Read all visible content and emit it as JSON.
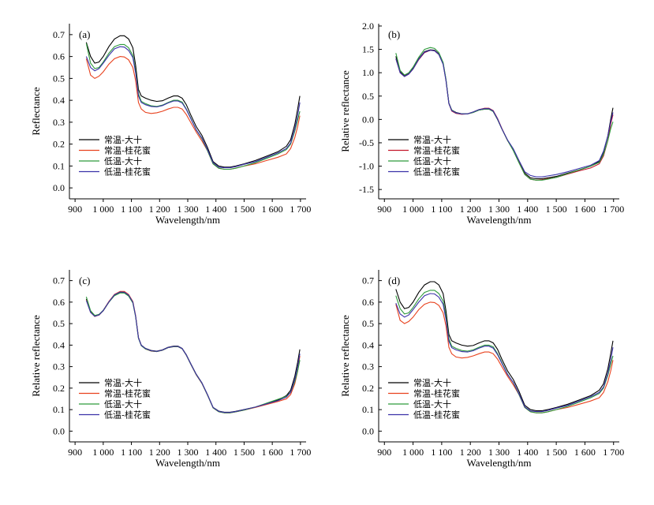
{
  "chart_data": [
    {
      "type": "line",
      "panel_label": "(a)",
      "xlabel": "Wavelength/nm",
      "ylabel": "Reflectance",
      "xlim": [
        880,
        1720
      ],
      "ylim": [
        -0.05,
        0.75
      ],
      "x_tick_labels": [
        "900",
        "1 000",
        "1 100",
        "1 200",
        "1 300",
        "1 400",
        "1 500",
        "1 600",
        "1 700"
      ],
      "x_ticks": [
        900,
        1000,
        1100,
        1200,
        1300,
        1400,
        1500,
        1600,
        1700
      ],
      "y_tick_labels": [
        "0.0",
        "0.1",
        "0.2",
        "0.3",
        "0.4",
        "0.5",
        "0.6",
        "0.7"
      ],
      "y_ticks": [
        0,
        0.1,
        0.2,
        0.3,
        0.4,
        0.5,
        0.6,
        0.7
      ],
      "legend": "bottom-left",
      "x": [
        940,
        955,
        970,
        985,
        1000,
        1020,
        1040,
        1060,
        1075,
        1090,
        1105,
        1115,
        1125,
        1135,
        1150,
        1170,
        1190,
        1210,
        1230,
        1250,
        1265,
        1280,
        1295,
        1310,
        1330,
        1350,
        1370,
        1390,
        1410,
        1430,
        1450,
        1470,
        1500,
        1540,
        1580,
        1620,
        1650,
        1665,
        1680,
        1690,
        1698
      ],
      "series": [
        {
          "name": "常温-大十",
          "color": "#000000",
          "values": [
            0.665,
            0.6,
            0.57,
            0.575,
            0.6,
            0.645,
            0.68,
            0.695,
            0.695,
            0.68,
            0.64,
            0.56,
            0.45,
            0.42,
            0.41,
            0.4,
            0.395,
            0.398,
            0.41,
            0.42,
            0.42,
            0.41,
            0.38,
            0.335,
            0.28,
            0.24,
            0.185,
            0.12,
            0.1,
            0.095,
            0.095,
            0.1,
            0.11,
            0.125,
            0.145,
            0.165,
            0.19,
            0.22,
            0.29,
            0.36,
            0.42
          ]
        },
        {
          "name": "常温-桂花蜜",
          "color": "#e8421e",
          "values": [
            0.59,
            0.515,
            0.5,
            0.51,
            0.53,
            0.565,
            0.59,
            0.6,
            0.598,
            0.585,
            0.55,
            0.49,
            0.39,
            0.36,
            0.345,
            0.34,
            0.343,
            0.35,
            0.36,
            0.368,
            0.368,
            0.36,
            0.335,
            0.3,
            0.255,
            0.215,
            0.17,
            0.11,
            0.09,
            0.085,
            0.085,
            0.09,
            0.1,
            0.11,
            0.125,
            0.14,
            0.155,
            0.18,
            0.23,
            0.28,
            0.33
          ]
        },
        {
          "name": "低温-大十",
          "color": "#2e9a3c",
          "values": [
            0.66,
            0.57,
            0.545,
            0.55,
            0.575,
            0.615,
            0.645,
            0.655,
            0.655,
            0.64,
            0.605,
            0.535,
            0.43,
            0.395,
            0.385,
            0.375,
            0.372,
            0.378,
            0.39,
            0.4,
            0.4,
            0.392,
            0.36,
            0.32,
            0.265,
            0.225,
            0.17,
            0.11,
            0.09,
            0.085,
            0.085,
            0.09,
            0.1,
            0.115,
            0.135,
            0.155,
            0.175,
            0.2,
            0.26,
            0.31,
            0.35
          ]
        },
        {
          "name": "低温-桂花蜜",
          "color": "#3a32a8",
          "values": [
            0.6,
            0.55,
            0.535,
            0.545,
            0.57,
            0.605,
            0.635,
            0.645,
            0.643,
            0.628,
            0.595,
            0.525,
            0.42,
            0.39,
            0.38,
            0.372,
            0.37,
            0.376,
            0.388,
            0.397,
            0.397,
            0.388,
            0.358,
            0.318,
            0.265,
            0.228,
            0.175,
            0.115,
            0.095,
            0.092,
            0.092,
            0.097,
            0.108,
            0.12,
            0.14,
            0.16,
            0.18,
            0.205,
            0.27,
            0.33,
            0.39
          ]
        }
      ]
    },
    {
      "type": "line",
      "panel_label": "(b)",
      "xlabel": "Wavelength/nm",
      "ylabel": "Relative reflectance",
      "xlim": [
        880,
        1720
      ],
      "ylim": [
        -1.7,
        2.05
      ],
      "x_tick_labels": [
        "900",
        "1 000",
        "1 100",
        "1 200",
        "1 300",
        "1 400",
        "1 500",
        "1 600",
        "1 700"
      ],
      "x_ticks": [
        900,
        1000,
        1100,
        1200,
        1300,
        1400,
        1500,
        1600,
        1700
      ],
      "y_tick_labels": [
        "-1.5",
        "-1.0",
        "-0.5",
        "0.0",
        "0.5",
        "1.0",
        "1.5",
        "2.0"
      ],
      "y_ticks": [
        -1.5,
        -1.0,
        -0.5,
        0.0,
        0.5,
        1.0,
        1.5,
        2.0
      ],
      "legend": "bottom-left",
      "x": [
        940,
        955,
        970,
        985,
        1000,
        1020,
        1040,
        1060,
        1075,
        1090,
        1105,
        1115,
        1125,
        1135,
        1150,
        1170,
        1190,
        1210,
        1230,
        1250,
        1265,
        1280,
        1295,
        1310,
        1330,
        1350,
        1370,
        1390,
        1410,
        1430,
        1450,
        1470,
        1500,
        1540,
        1580,
        1620,
        1650,
        1665,
        1680,
        1690,
        1698
      ],
      "series": [
        {
          "name": "常温-大十",
          "color": "#000000",
          "values": [
            1.35,
            1.02,
            0.93,
            0.98,
            1.1,
            1.3,
            1.45,
            1.49,
            1.48,
            1.4,
            1.2,
            0.85,
            0.35,
            0.2,
            0.15,
            0.12,
            0.12,
            0.15,
            0.2,
            0.22,
            0.22,
            0.17,
            0.0,
            -0.2,
            -0.45,
            -0.65,
            -0.9,
            -1.15,
            -1.25,
            -1.27,
            -1.27,
            -1.25,
            -1.22,
            -1.15,
            -1.08,
            -1.0,
            -0.9,
            -0.7,
            -0.35,
            0.0,
            0.25
          ]
        },
        {
          "name": "常温-桂花蜜",
          "color": "#c4152b",
          "values": [
            1.3,
            1.0,
            0.92,
            0.97,
            1.08,
            1.28,
            1.43,
            1.48,
            1.47,
            1.39,
            1.19,
            0.84,
            0.34,
            0.18,
            0.13,
            0.11,
            0.12,
            0.16,
            0.21,
            0.24,
            0.24,
            0.19,
            0.02,
            -0.19,
            -0.45,
            -0.66,
            -0.92,
            -1.18,
            -1.28,
            -1.3,
            -1.29,
            -1.27,
            -1.24,
            -1.17,
            -1.1,
            -1.04,
            -0.95,
            -0.78,
            -0.45,
            -0.1,
            0.1
          ]
        },
        {
          "name": "低温-大十",
          "color": "#2e9a3c",
          "values": [
            1.42,
            1.05,
            0.95,
            1.0,
            1.12,
            1.33,
            1.5,
            1.54,
            1.52,
            1.43,
            1.22,
            0.86,
            0.34,
            0.2,
            0.14,
            0.12,
            0.12,
            0.15,
            0.2,
            0.22,
            0.22,
            0.17,
            0.0,
            -0.2,
            -0.45,
            -0.67,
            -0.93,
            -1.18,
            -1.28,
            -1.3,
            -1.3,
            -1.28,
            -1.24,
            -1.16,
            -1.08,
            -1.0,
            -0.92,
            -0.75,
            -0.45,
            -0.2,
            -0.05
          ]
        },
        {
          "name": "低温-桂花蜜",
          "color": "#3a32a8",
          "values": [
            1.3,
            1.0,
            0.92,
            0.97,
            1.08,
            1.29,
            1.44,
            1.48,
            1.47,
            1.39,
            1.18,
            0.83,
            0.34,
            0.19,
            0.14,
            0.12,
            0.12,
            0.16,
            0.21,
            0.23,
            0.23,
            0.18,
            0.01,
            -0.2,
            -0.44,
            -0.63,
            -0.88,
            -1.12,
            -1.2,
            -1.23,
            -1.23,
            -1.21,
            -1.18,
            -1.12,
            -1.05,
            -0.98,
            -0.88,
            -0.68,
            -0.35,
            -0.05,
            0.15
          ]
        }
      ]
    },
    {
      "type": "line",
      "panel_label": "(c)",
      "xlabel": "Wavelength/nm",
      "ylabel": "Relative reflectance",
      "xlim": [
        880,
        1720
      ],
      "ylim": [
        -0.05,
        0.75
      ],
      "x_tick_labels": [
        "900",
        "1 000",
        "1 100",
        "1 200",
        "1 300",
        "1 400",
        "1 500",
        "1 600",
        "1 700"
      ],
      "x_ticks": [
        900,
        1000,
        1100,
        1200,
        1300,
        1400,
        1500,
        1600,
        1700
      ],
      "y_tick_labels": [
        "0.0",
        "0.1",
        "0.2",
        "0.3",
        "0.4",
        "0.5",
        "0.6",
        "0.7"
      ],
      "y_ticks": [
        0,
        0.1,
        0.2,
        0.3,
        0.4,
        0.5,
        0.6,
        0.7
      ],
      "legend": "bottom-left",
      "x": [
        940,
        955,
        970,
        985,
        1000,
        1020,
        1040,
        1060,
        1075,
        1090,
        1105,
        1115,
        1125,
        1135,
        1150,
        1170,
        1190,
        1210,
        1230,
        1250,
        1265,
        1280,
        1295,
        1310,
        1330,
        1350,
        1370,
        1390,
        1410,
        1430,
        1450,
        1470,
        1500,
        1540,
        1580,
        1620,
        1650,
        1665,
        1680,
        1690,
        1698
      ],
      "series": [
        {
          "name": "常温-大十",
          "color": "#000000",
          "values": [
            0.615,
            0.555,
            0.535,
            0.54,
            0.56,
            0.6,
            0.632,
            0.645,
            0.645,
            0.632,
            0.6,
            0.535,
            0.435,
            0.4,
            0.385,
            0.375,
            0.372,
            0.378,
            0.39,
            0.395,
            0.395,
            0.385,
            0.355,
            0.315,
            0.265,
            0.225,
            0.17,
            0.11,
            0.093,
            0.088,
            0.088,
            0.092,
            0.1,
            0.112,
            0.128,
            0.145,
            0.165,
            0.19,
            0.255,
            0.32,
            0.38
          ]
        },
        {
          "name": "常温-桂花蜜",
          "color": "#e8421e",
          "values": [
            0.61,
            0.553,
            0.533,
            0.54,
            0.562,
            0.603,
            0.636,
            0.65,
            0.65,
            0.636,
            0.603,
            0.537,
            0.435,
            0.398,
            0.382,
            0.372,
            0.37,
            0.376,
            0.388,
            0.393,
            0.393,
            0.383,
            0.353,
            0.313,
            0.262,
            0.222,
            0.168,
            0.108,
            0.09,
            0.085,
            0.085,
            0.09,
            0.098,
            0.11,
            0.124,
            0.138,
            0.15,
            0.17,
            0.22,
            0.28,
            0.35
          ]
        },
        {
          "name": "低温-大十",
          "color": "#2e9a3c",
          "values": [
            0.625,
            0.56,
            0.538,
            0.543,
            0.562,
            0.6,
            0.63,
            0.643,
            0.642,
            0.628,
            0.596,
            0.532,
            0.432,
            0.397,
            0.382,
            0.373,
            0.37,
            0.376,
            0.388,
            0.393,
            0.393,
            0.383,
            0.353,
            0.313,
            0.263,
            0.223,
            0.168,
            0.108,
            0.09,
            0.085,
            0.085,
            0.09,
            0.098,
            0.112,
            0.13,
            0.148,
            0.162,
            0.18,
            0.23,
            0.28,
            0.33
          ]
        },
        {
          "name": "低温-桂花蜜",
          "color": "#3a32a8",
          "values": [
            0.608,
            0.552,
            0.534,
            0.541,
            0.561,
            0.601,
            0.634,
            0.647,
            0.646,
            0.633,
            0.6,
            0.535,
            0.434,
            0.399,
            0.384,
            0.374,
            0.371,
            0.377,
            0.389,
            0.394,
            0.394,
            0.384,
            0.354,
            0.314,
            0.264,
            0.224,
            0.17,
            0.11,
            0.092,
            0.087,
            0.087,
            0.091,
            0.1,
            0.112,
            0.127,
            0.142,
            0.158,
            0.18,
            0.24,
            0.3,
            0.36
          ]
        }
      ]
    },
    {
      "type": "line",
      "panel_label": "(d)",
      "xlabel": "Wavelength/nm",
      "ylabel": "Relative reflectance",
      "xlim": [
        880,
        1720
      ],
      "ylim": [
        -0.05,
        0.75
      ],
      "x_tick_labels": [
        "900",
        "1 000",
        "1 100",
        "1 200",
        "1 300",
        "1 400",
        "1 500",
        "1 600",
        "1 700"
      ],
      "x_ticks": [
        900,
        1000,
        1100,
        1200,
        1300,
        1400,
        1500,
        1600,
        1700
      ],
      "y_tick_labels": [
        "0.0",
        "0.1",
        "0.2",
        "0.3",
        "0.4",
        "0.5",
        "0.6",
        "0.7"
      ],
      "y_ticks": [
        0,
        0.1,
        0.2,
        0.3,
        0.4,
        0.5,
        0.6,
        0.7
      ],
      "legend": "bottom-left",
      "x": [
        940,
        955,
        970,
        985,
        1000,
        1020,
        1040,
        1060,
        1075,
        1090,
        1105,
        1115,
        1125,
        1135,
        1150,
        1170,
        1190,
        1210,
        1230,
        1250,
        1265,
        1280,
        1295,
        1310,
        1330,
        1350,
        1370,
        1390,
        1410,
        1430,
        1450,
        1470,
        1500,
        1540,
        1580,
        1620,
        1650,
        1665,
        1680,
        1690,
        1698
      ],
      "series": [
        {
          "name": "常温-大十",
          "color": "#000000",
          "values": [
            0.66,
            0.6,
            0.57,
            0.575,
            0.6,
            0.645,
            0.68,
            0.695,
            0.695,
            0.68,
            0.64,
            0.56,
            0.45,
            0.42,
            0.41,
            0.4,
            0.395,
            0.398,
            0.41,
            0.42,
            0.42,
            0.41,
            0.38,
            0.335,
            0.28,
            0.24,
            0.185,
            0.12,
            0.1,
            0.095,
            0.095,
            0.1,
            0.11,
            0.125,
            0.145,
            0.165,
            0.19,
            0.22,
            0.29,
            0.36,
            0.42
          ]
        },
        {
          "name": "常温-桂花蜜",
          "color": "#e8421e",
          "values": [
            0.59,
            0.515,
            0.5,
            0.51,
            0.53,
            0.565,
            0.59,
            0.6,
            0.598,
            0.585,
            0.55,
            0.49,
            0.39,
            0.36,
            0.345,
            0.34,
            0.343,
            0.35,
            0.36,
            0.368,
            0.368,
            0.36,
            0.335,
            0.3,
            0.255,
            0.215,
            0.17,
            0.11,
            0.09,
            0.085,
            0.085,
            0.09,
            0.1,
            0.11,
            0.125,
            0.14,
            0.155,
            0.18,
            0.23,
            0.28,
            0.33
          ]
        },
        {
          "name": "低温-大十",
          "color": "#2e9a3c",
          "values": [
            0.63,
            0.57,
            0.545,
            0.55,
            0.575,
            0.615,
            0.645,
            0.655,
            0.655,
            0.64,
            0.605,
            0.535,
            0.43,
            0.395,
            0.385,
            0.375,
            0.372,
            0.378,
            0.39,
            0.4,
            0.4,
            0.392,
            0.36,
            0.32,
            0.265,
            0.225,
            0.17,
            0.11,
            0.09,
            0.085,
            0.085,
            0.09,
            0.1,
            0.115,
            0.135,
            0.155,
            0.175,
            0.2,
            0.26,
            0.31,
            0.35
          ]
        },
        {
          "name": "低温-桂花蜜",
          "color": "#3a32a8",
          "values": [
            0.595,
            0.545,
            0.53,
            0.54,
            0.565,
            0.6,
            0.63,
            0.64,
            0.638,
            0.623,
            0.59,
            0.52,
            0.418,
            0.388,
            0.378,
            0.37,
            0.368,
            0.374,
            0.386,
            0.395,
            0.395,
            0.386,
            0.356,
            0.316,
            0.263,
            0.226,
            0.173,
            0.113,
            0.094,
            0.091,
            0.091,
            0.096,
            0.107,
            0.12,
            0.14,
            0.16,
            0.18,
            0.205,
            0.27,
            0.33,
            0.39
          ]
        }
      ]
    }
  ]
}
